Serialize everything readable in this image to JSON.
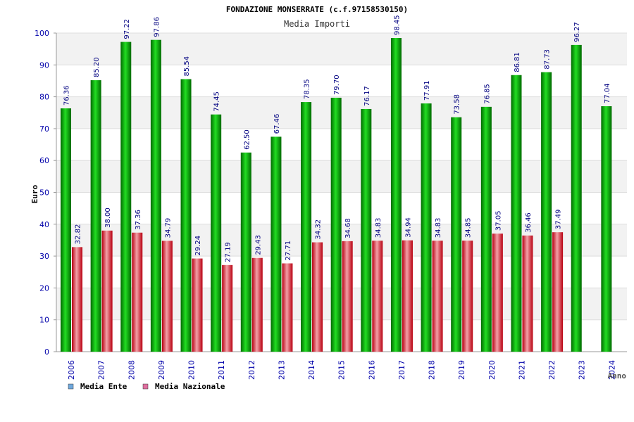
{
  "chart_data": {
    "type": "bar",
    "title": "FONDAZIONE MONSERRATE (c.f.97158530150)",
    "subtitle": "Media Importi",
    "ylabel": "Euro",
    "xlabel": "Anno",
    "ylim": [
      0,
      100
    ],
    "yticks": [
      0,
      10,
      20,
      30,
      40,
      50,
      60,
      70,
      80,
      90,
      100
    ],
    "categories": [
      "2006",
      "2007",
      "2008",
      "2009",
      "2010",
      "2011",
      "2012",
      "2013",
      "2014",
      "2015",
      "2016",
      "2017",
      "2018",
      "2019",
      "2020",
      "2021",
      "2022",
      "2023",
      "2024"
    ],
    "series": [
      {
        "name": "Media Ente",
        "legend_color": "#6fa8dc",
        "color": "#00b000",
        "values": [
          76.36,
          85.2,
          97.22,
          97.86,
          85.54,
          74.45,
          62.5,
          67.46,
          78.35,
          79.7,
          76.17,
          98.45,
          77.91,
          73.58,
          76.85,
          86.81,
          87.73,
          96.27,
          77.04
        ],
        "labels": [
          "76.36",
          "85.20",
          "97.22",
          "97.86",
          "85.54",
          "74.45",
          "62.50",
          "67.46",
          "78.35",
          "79.70",
          "76.17",
          "98.45",
          "77.91",
          "73.58",
          "76.85",
          "86.81",
          "87.73",
          "96.27",
          "77.04"
        ]
      },
      {
        "name": "Media Nazionale",
        "legend_color": "#e06fa0",
        "color": "#e8303a",
        "values": [
          32.82,
          38.0,
          37.36,
          34.79,
          29.24,
          27.19,
          29.43,
          27.71,
          34.32,
          34.68,
          34.83,
          34.94,
          34.83,
          34.85,
          37.05,
          36.46,
          37.49,
          null,
          null
        ],
        "labels": [
          "32.82",
          "38.00",
          "37.36",
          "34.79",
          "29.24",
          "27.19",
          "29.43",
          "27.71",
          "34.32",
          "34.68",
          "34.83",
          "34.94",
          "34.83",
          "34.85",
          "37.05",
          "36.46",
          "37.49",
          null,
          null
        ]
      }
    ],
    "legend_position": "bottom-left",
    "grid": true
  },
  "colors": {
    "axis_text": "#0000aa",
    "label_text": "#000080",
    "band": "#f2f2f2",
    "grid": "#dddddd"
  }
}
